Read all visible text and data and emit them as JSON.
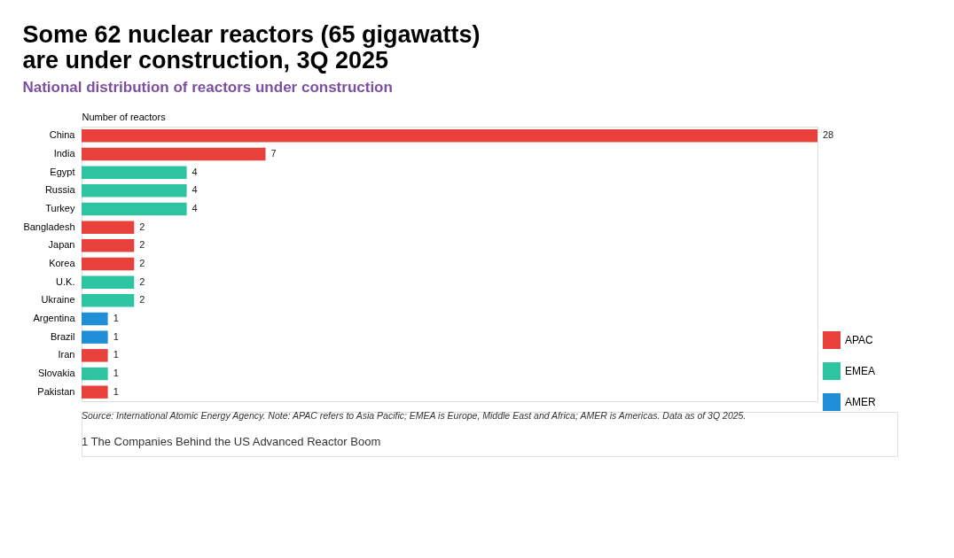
{
  "chart_data": {
    "type": "bar",
    "orientation": "horizontal",
    "title": [
      "Some 62 nuclear reactors (65 gigawatts)",
      "are under construction, 3Q 2025"
    ],
    "subtitle": "National distribution of reactors under construction",
    "xlabel": "Number of reactors",
    "categories": [
      "China",
      "India",
      "Egypt",
      "Russia",
      "Turkey",
      "Bangladesh",
      "Japan",
      "Korea",
      "U.K.",
      "Ukraine",
      "Argentina",
      "Brazil",
      "Iran",
      "Slovakia",
      "Pakistan"
    ],
    "series": [
      {
        "name": "APAC",
        "color": "#e8403a",
        "values": [
          28,
          7,
          null,
          null,
          null,
          2,
          2,
          2,
          null,
          null,
          null,
          null,
          1,
          null,
          1
        ]
      },
      {
        "name": "EMEA",
        "color": "#2ec4a0",
        "values": [
          null,
          null,
          4,
          4,
          4,
          null,
          null,
          null,
          2,
          2,
          null,
          null,
          null,
          1,
          null
        ]
      },
      {
        "name": "AMER",
        "color": "#1f8ed6",
        "values": [
          null,
          null,
          null,
          null,
          null,
          null,
          null,
          null,
          null,
          null,
          1,
          1,
          null,
          null,
          null
        ]
      }
    ],
    "data_labels": true,
    "legend": "bottom right",
    "annotations": [
      "Source: International Atomic Energy Agency. Note: APAC refers to Asia Pacific; EMEA is Europe, Middle East and Africa; AMER is Americas. Data as of 3Q 2025.",
      "1     The Companies Behind the US Advanced Reactor Boom"
    ]
  }
}
